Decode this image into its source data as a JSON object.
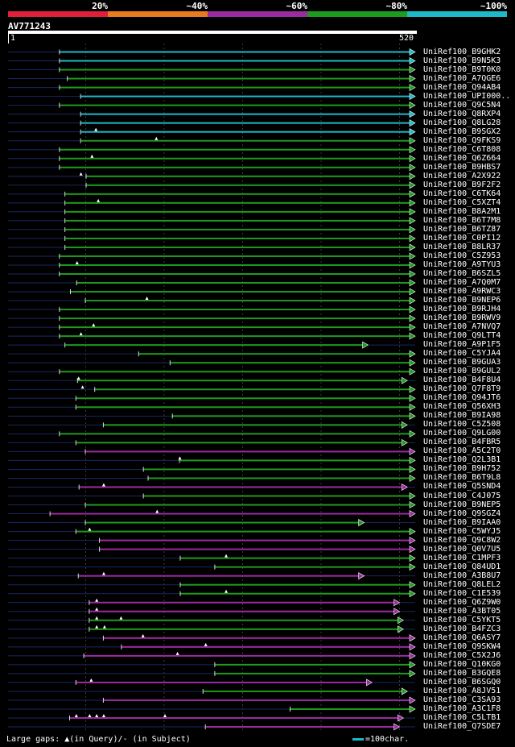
{
  "scale": {
    "labels": [
      "20%",
      "~40%",
      "~60%",
      "~80%",
      "~100%"
    ],
    "colors": [
      "#e0203a",
      "#e87b1e",
      "#9c2aa0",
      "#1e9a1e",
      "#1fb8c8"
    ]
  },
  "query": {
    "name": "AV771243",
    "start_label": "1",
    "end_label": "520"
  },
  "footer": {
    "gaps_text": "Large gaps: ▲(in Query)/- (in Subject)",
    "legend_text": "=100char."
  },
  "chart_data": {
    "type": "alignment",
    "title": "AV771243",
    "query_length": 520,
    "hits": [
      {
        "name": "UniRef100_B9GHK2",
        "start": 67,
        "end": 520,
        "id": "~100%",
        "arrow": true,
        "marks": []
      },
      {
        "name": "UniRef100_B9N5K3",
        "start": 67,
        "end": 520,
        "id": "~100%",
        "arrow": true,
        "marks": []
      },
      {
        "name": "UniRef100_B9T0K0",
        "start": 67,
        "end": 520,
        "id": "~80%",
        "arrow": true,
        "marks": []
      },
      {
        "name": "UniRef100_A7QGE6",
        "start": 77,
        "end": 520,
        "id": "~80%",
        "arrow": true,
        "marks": []
      },
      {
        "name": "UniRef100_Q94AB4",
        "start": 67,
        "end": 520,
        "id": "~80%",
        "arrow": true,
        "marks": []
      },
      {
        "name": "UniRef100_UPI000..",
        "start": 94,
        "end": 520,
        "id": "~100%",
        "arrow": true,
        "marks": []
      },
      {
        "name": "UniRef100_Q9C5N4",
        "start": 67,
        "end": 520,
        "id": "~80%",
        "arrow": true,
        "marks": []
      },
      {
        "name": "UniRef100_Q8RXP4",
        "start": 94,
        "end": 520,
        "id": "~100%",
        "arrow": true,
        "marks": []
      },
      {
        "name": "UniRef100_Q8LG28",
        "start": 94,
        "end": 520,
        "id": "~100%",
        "arrow": true,
        "marks": []
      },
      {
        "name": "UniRef100_B9SGX2",
        "start": 94,
        "end": 520,
        "id": "~100%",
        "arrow": true,
        "marks": [
          113
        ]
      },
      {
        "name": "UniRef100_Q9FKS9",
        "start": 94,
        "end": 520,
        "id": "~80%",
        "arrow": true,
        "marks": [
          190
        ]
      },
      {
        "name": "UniRef100_C6T808",
        "start": 67,
        "end": 520,
        "id": "~80%",
        "arrow": true,
        "marks": []
      },
      {
        "name": "UniRef100_Q6Z664",
        "start": 67,
        "end": 520,
        "id": "~80%",
        "arrow": true,
        "marks": [
          108
        ]
      },
      {
        "name": "UniRef100_B9HBS7",
        "start": 67,
        "end": 520,
        "id": "~80%",
        "arrow": true,
        "marks": []
      },
      {
        "name": "UniRef100_A2X922",
        "start": 101,
        "end": 520,
        "id": "~80%",
        "arrow": true,
        "marks": [
          94
        ]
      },
      {
        "name": "UniRef100_B9F2F2",
        "start": 101,
        "end": 520,
        "id": "~80%",
        "arrow": true,
        "marks": []
      },
      {
        "name": "UniRef100_C6TK64",
        "start": 74,
        "end": 520,
        "id": "~80%",
        "arrow": true,
        "marks": []
      },
      {
        "name": "UniRef100_C5XZT4",
        "start": 74,
        "end": 520,
        "id": "~80%",
        "arrow": true,
        "marks": [
          116
        ]
      },
      {
        "name": "UniRef100_B8A2M1",
        "start": 74,
        "end": 520,
        "id": "~80%",
        "arrow": true,
        "marks": []
      },
      {
        "name": "UniRef100_B6T7M8",
        "start": 74,
        "end": 520,
        "id": "~80%",
        "arrow": true,
        "marks": []
      },
      {
        "name": "UniRef100_B6TZ87",
        "start": 74,
        "end": 520,
        "id": "~80%",
        "arrow": true,
        "marks": []
      },
      {
        "name": "UniRef100_C0PI12",
        "start": 74,
        "end": 520,
        "id": "~80%",
        "arrow": true,
        "marks": []
      },
      {
        "name": "UniRef100_B8LR37",
        "start": 74,
        "end": 520,
        "id": "~80%",
        "arrow": true,
        "marks": []
      },
      {
        "name": "UniRef100_C5Z953",
        "start": 67,
        "end": 520,
        "id": "~80%",
        "arrow": true,
        "marks": []
      },
      {
        "name": "UniRef100_A9TYU3",
        "start": 67,
        "end": 520,
        "id": "~80%",
        "arrow": true,
        "marks": [
          89
        ]
      },
      {
        "name": "UniRef100_B6SZL5",
        "start": 67,
        "end": 520,
        "id": "~80%",
        "arrow": true,
        "marks": []
      },
      {
        "name": "UniRef100_A7Q0M7",
        "start": 89,
        "end": 520,
        "id": "~80%",
        "arrow": true,
        "marks": []
      },
      {
        "name": "UniRef100_A9RWC3",
        "start": 81,
        "end": 520,
        "id": "~80%",
        "arrow": true,
        "marks": []
      },
      {
        "name": "UniRef100_B9NEP6",
        "start": 100,
        "end": 520,
        "id": "~80%",
        "arrow": true,
        "marks": [
          178
        ]
      },
      {
        "name": "UniRef100_B9RJH4",
        "start": 67,
        "end": 520,
        "id": "~80%",
        "arrow": true,
        "marks": []
      },
      {
        "name": "UniRef100_B9RWV9",
        "start": 67,
        "end": 520,
        "id": "~80%",
        "arrow": true,
        "marks": []
      },
      {
        "name": "UniRef100_A7NVQ7",
        "start": 67,
        "end": 520,
        "id": "~80%",
        "arrow": true,
        "marks": [
          110
        ]
      },
      {
        "name": "UniRef100_Q9LTT4",
        "start": 67,
        "end": 520,
        "id": "~80%",
        "arrow": true,
        "marks": [
          94
        ]
      },
      {
        "name": "UniRef100_A9P1F5",
        "start": 74,
        "end": 460,
        "id": "~80%",
        "arrow": true,
        "marks": []
      },
      {
        "name": "UniRef100_C5YJA4",
        "start": 168,
        "end": 520,
        "id": "~80%",
        "arrow": true,
        "marks": []
      },
      {
        "name": "UniRef100_B9GUA3",
        "start": 208,
        "end": 520,
        "id": "~80%",
        "arrow": true,
        "marks": []
      },
      {
        "name": "UniRef100_B9GUL2",
        "start": 67,
        "end": 520,
        "id": "~80%",
        "arrow": true,
        "marks": []
      },
      {
        "name": "UniRef100_B4F8U4",
        "start": 90,
        "end": 510,
        "id": "~80%",
        "arrow": true,
        "marks": [
          91
        ]
      },
      {
        "name": "UniRef100_Q7F8T9",
        "start": 112,
        "end": 520,
        "id": "~80%",
        "arrow": true,
        "marks": [
          96
        ]
      },
      {
        "name": "UniRef100_Q94JT6",
        "start": 88,
        "end": 520,
        "id": "~80%",
        "arrow": true,
        "marks": []
      },
      {
        "name": "UniRef100_Q56XH3",
        "start": 88,
        "end": 520,
        "id": "~80%",
        "arrow": true,
        "marks": []
      },
      {
        "name": "UniRef100_B9IA98",
        "start": 211,
        "end": 520,
        "id": "~80%",
        "arrow": true,
        "marks": []
      },
      {
        "name": "UniRef100_C5Z508",
        "start": 123,
        "end": 510,
        "id": "~80%",
        "arrow": true,
        "marks": []
      },
      {
        "name": "UniRef100_Q9LG00",
        "start": 67,
        "end": 520,
        "id": "~80%",
        "arrow": true,
        "marks": []
      },
      {
        "name": "UniRef100_B4FBR5",
        "start": 88,
        "end": 510,
        "id": "~80%",
        "arrow": true,
        "marks": []
      },
      {
        "name": "UniRef100_A5C2T0",
        "start": 100,
        "end": 520,
        "id": "~60%",
        "arrow": true,
        "marks": []
      },
      {
        "name": "UniRef100_Q2L3B1",
        "start": 220,
        "end": 520,
        "id": "~80%",
        "arrow": true,
        "marks": [
          220
        ]
      },
      {
        "name": "UniRef100_B9H752",
        "start": 174,
        "end": 520,
        "id": "~80%",
        "arrow": true,
        "marks": []
      },
      {
        "name": "UniRef100_B6T9L8",
        "start": 180,
        "end": 520,
        "id": "~80%",
        "arrow": true,
        "marks": []
      },
      {
        "name": "UniRef100_Q5SND4",
        "start": 92,
        "end": 510,
        "id": "~60%",
        "arrow": true,
        "marks": [
          123
        ]
      },
      {
        "name": "UniRef100_C4J075",
        "start": 174,
        "end": 520,
        "id": "~80%",
        "arrow": true,
        "marks": []
      },
      {
        "name": "UniRef100_B9NEP5",
        "start": 100,
        "end": 520,
        "id": "~80%",
        "arrow": true,
        "marks": []
      },
      {
        "name": "UniRef100_Q9SGZ4",
        "start": 55,
        "end": 520,
        "id": "~60%",
        "arrow": true,
        "marks": [
          191
        ]
      },
      {
        "name": "UniRef100_B9IAA0",
        "start": 100,
        "end": 455,
        "id": "~80%",
        "arrow": true,
        "marks": []
      },
      {
        "name": "UniRef100_C5WYJ5",
        "start": 88,
        "end": 520,
        "id": "~80%",
        "arrow": true,
        "marks": [
          105
        ]
      },
      {
        "name": "UniRef100_Q9C8W2",
        "start": 118,
        "end": 520,
        "id": "~60%",
        "arrow": true,
        "marks": []
      },
      {
        "name": "UniRef100_Q0V7U5",
        "start": 118,
        "end": 520,
        "id": "~60%",
        "arrow": true,
        "marks": []
      },
      {
        "name": "UniRef100_C1MPF3",
        "start": 221,
        "end": 520,
        "id": "~80%",
        "arrow": true,
        "marks": [
          279
        ]
      },
      {
        "name": "UniRef100_Q84UD1",
        "start": 265,
        "end": 520,
        "id": "~80%",
        "arrow": true,
        "marks": []
      },
      {
        "name": "UniRef100_A3B8U7",
        "start": 91,
        "end": 455,
        "id": "~60%",
        "arrow": true,
        "marks": [
          123
        ]
      },
      {
        "name": "UniRef100_Q8LEL2",
        "start": 221,
        "end": 520,
        "id": "~80%",
        "arrow": true,
        "marks": []
      },
      {
        "name": "UniRef100_C1E539",
        "start": 221,
        "end": 520,
        "id": "~80%",
        "arrow": true,
        "marks": [
          279
        ]
      },
      {
        "name": "UniRef100_Q6Z9W0",
        "start": 105,
        "end": 500,
        "id": "~60%",
        "arrow": true,
        "marks": [
          114
        ]
      },
      {
        "name": "UniRef100_A3BT05",
        "start": 105,
        "end": 500,
        "id": "~60%",
        "arrow": true,
        "marks": [
          114
        ]
      },
      {
        "name": "UniRef100_C5YKT5",
        "start": 105,
        "end": 505,
        "id": "~80%",
        "arrow": true,
        "marks": [
          114,
          145
        ]
      },
      {
        "name": "UniRef100_B4FZC3",
        "start": 105,
        "end": 505,
        "id": "~80%",
        "arrow": true,
        "marks": [
          114,
          124
        ]
      },
      {
        "name": "UniRef100_Q6ASY7",
        "start": 123,
        "end": 520,
        "id": "~60%",
        "arrow": true,
        "marks": [
          173
        ]
      },
      {
        "name": "UniRef100_Q9SKW4",
        "start": 146,
        "end": 520,
        "id": "~60%",
        "arrow": true,
        "marks": [
          253
        ]
      },
      {
        "name": "UniRef100_C5X2J6",
        "start": 98,
        "end": 520,
        "id": "~60%",
        "arrow": true,
        "marks": [
          217
        ]
      },
      {
        "name": "UniRef100_Q10KG0",
        "start": 265,
        "end": 520,
        "id": "~80%",
        "arrow": true,
        "marks": []
      },
      {
        "name": "UniRef100_B3GQE8",
        "start": 265,
        "end": 520,
        "id": "~80%",
        "arrow": true,
        "marks": []
      },
      {
        "name": "UniRef100_B6SGQ0",
        "start": 88,
        "end": 465,
        "id": "~60%",
        "arrow": true,
        "marks": [
          107
        ]
      },
      {
        "name": "UniRef100_A8JV51",
        "start": 250,
        "end": 510,
        "id": "~80%",
        "arrow": true,
        "marks": []
      },
      {
        "name": "UniRef100_C3SA93",
        "start": 123,
        "end": 520,
        "id": "~60%",
        "arrow": true,
        "marks": []
      },
      {
        "name": "UniRef100_A3C1F8",
        "start": 361,
        "end": 520,
        "id": "~80%",
        "arrow": true,
        "marks": []
      },
      {
        "name": "UniRef100_C5LTB1",
        "start": 80,
        "end": 505,
        "id": "~60%",
        "arrow": true,
        "marks": [
          88,
          105,
          114,
          123,
          201
        ]
      },
      {
        "name": "UniRef100_Q7SDE7",
        "start": 253,
        "end": 500,
        "id": "~60%",
        "arrow": true,
        "marks": []
      }
    ]
  }
}
